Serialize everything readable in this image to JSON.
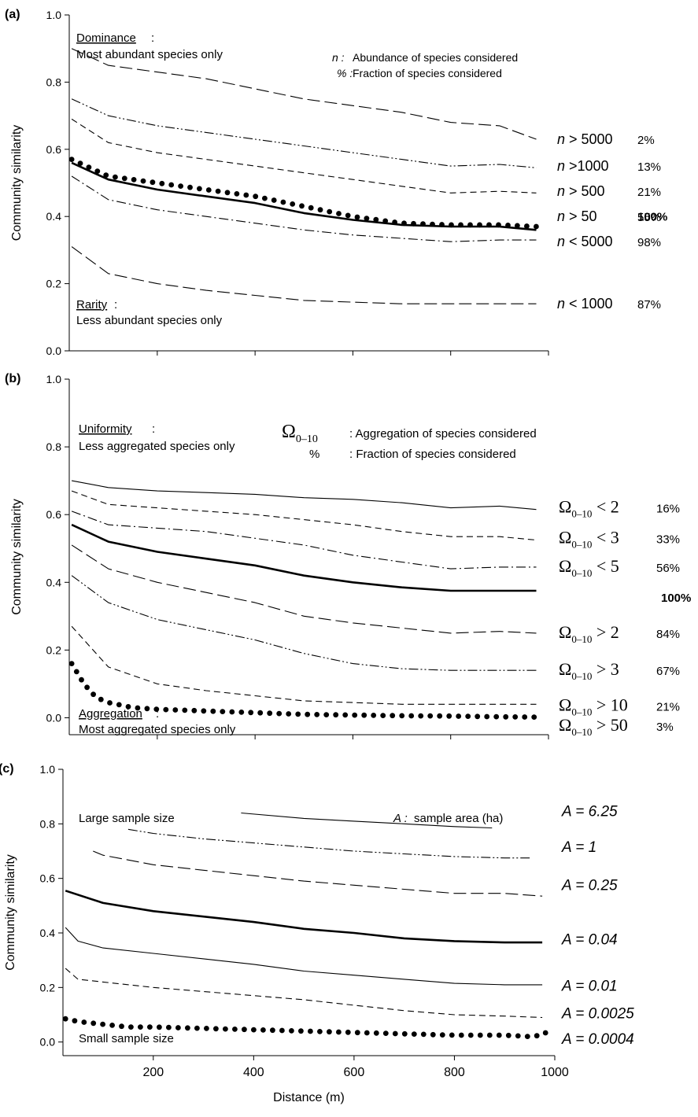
{
  "chart_data": [
    {
      "type": "line",
      "panel_label": "(a)",
      "ylabel": "Community similarity",
      "xlabel": "",
      "xlim": [
        20,
        1000
      ],
      "ylim": [
        0,
        1
      ],
      "yticks": [
        "0.0",
        "0.2",
        "0.4",
        "0.6",
        "0.8",
        "1.0"
      ],
      "xticks": [
        "",
        "",
        "",
        "",
        ""
      ],
      "annotations": {
        "top_left_heading": "Dominance",
        "top_left_sub": "Most abundant species only",
        "bottom_left_heading": "Rarity",
        "bottom_left_sub": "Less abundant species only",
        "legend_n_sym": "n :",
        "legend_n_text": "Abundance of species considered",
        "legend_pct_sym": "% :",
        "legend_pct_text": "Fraction of species considered"
      },
      "series": [
        {
          "name": "n > 5000",
          "sym": "n",
          "rel": "> 5000",
          "pct": "2%",
          "style": "longdash",
          "label_y": 0.63,
          "x": [
            25,
            100,
            200,
            300,
            400,
            500,
            600,
            700,
            800,
            900,
            975
          ],
          "y": [
            0.9,
            0.85,
            0.83,
            0.81,
            0.78,
            0.75,
            0.73,
            0.71,
            0.68,
            0.67,
            0.63
          ]
        },
        {
          "name": "n >1000",
          "sym": "n",
          "rel": ">1000",
          "pct": "13%",
          "style": "dashdotdot",
          "label_y": 0.55,
          "x": [
            25,
            100,
            200,
            300,
            400,
            500,
            600,
            700,
            800,
            900,
            975
          ],
          "y": [
            0.75,
            0.7,
            0.67,
            0.65,
            0.63,
            0.61,
            0.59,
            0.57,
            0.55,
            0.555,
            0.545
          ]
        },
        {
          "name": "n > 500",
          "sym": "n",
          "rel": "> 500",
          "pct": "21%",
          "style": "dash",
          "label_y": 0.475,
          "x": [
            25,
            100,
            200,
            300,
            400,
            500,
            600,
            700,
            800,
            900,
            975
          ],
          "y": [
            0.69,
            0.62,
            0.59,
            0.57,
            0.55,
            0.53,
            0.51,
            0.49,
            0.47,
            0.475,
            0.47
          ]
        },
        {
          "name": "n > 50",
          "sym": "n",
          "rel": "> 50",
          "pct": "55%",
          "style": "solid-thick",
          "label_y": 0.4,
          "x": [
            25,
            100,
            200,
            300,
            400,
            500,
            600,
            700,
            800,
            900,
            975
          ],
          "y": [
            0.56,
            0.51,
            0.48,
            0.46,
            0.44,
            0.41,
            0.39,
            0.375,
            0.37,
            0.37,
            0.36
          ]
        },
        {
          "name": "100%",
          "sym": "",
          "rel": "",
          "pct": "100%",
          "style": "dots",
          "label_y": 0.38,
          "x": [
            25,
            100,
            200,
            300,
            400,
            500,
            600,
            700,
            800,
            900,
            975
          ],
          "y": [
            0.57,
            0.52,
            0.5,
            0.48,
            0.46,
            0.43,
            0.4,
            0.38,
            0.375,
            0.375,
            0.37
          ]
        },
        {
          "name": "n < 5000",
          "sym": "n",
          "rel": "< 5000",
          "pct": "98%",
          "style": "dashdot",
          "label_y": 0.325,
          "x": [
            25,
            100,
            200,
            300,
            400,
            500,
            600,
            700,
            800,
            900,
            975
          ],
          "y": [
            0.52,
            0.45,
            0.42,
            0.4,
            0.38,
            0.36,
            0.345,
            0.335,
            0.325,
            0.33,
            0.33
          ]
        },
        {
          "name": "n < 1000",
          "sym": "n",
          "rel": "< 1000",
          "pct": "87%",
          "style": "longdash",
          "label_y": 0.14,
          "x": [
            25,
            100,
            200,
            300,
            400,
            500,
            600,
            700,
            800,
            900,
            975
          ],
          "y": [
            0.31,
            0.23,
            0.2,
            0.18,
            0.165,
            0.15,
            0.145,
            0.14,
            0.14,
            0.14,
            0.14
          ]
        }
      ]
    },
    {
      "type": "line",
      "panel_label": "(b)",
      "ylabel": "Community similarity",
      "xlabel": "",
      "xlim": [
        20,
        1000
      ],
      "ylim": [
        -0.05,
        1
      ],
      "yticks": [
        "0.0",
        "0.2",
        "0.4",
        "0.6",
        "0.8",
        "1.0"
      ],
      "xticks": [
        "",
        "",
        "",
        "",
        ""
      ],
      "annotations": {
        "top_left_heading": "Uniformity",
        "top_left_sub": "Less aggregated species only",
        "bottom_left_heading": "Aggregation",
        "bottom_left_sub": "Most aggregated species only",
        "legend_omega_sym": "Ω",
        "legend_omega_sub": "0–10",
        "legend_omega_text": ": Aggregation of species considered",
        "legend_pct_sym": "%",
        "legend_pct_text": ": Fraction of species considered"
      },
      "series": [
        {
          "name": "Ω0–10 < 2",
          "sym": "Ω",
          "sub": "0–10",
          "rel": "< 2",
          "pct": "16%",
          "style": "solid-thin",
          "label_y": 0.62,
          "x": [
            25,
            100,
            200,
            300,
            400,
            500,
            600,
            700,
            800,
            900,
            975
          ],
          "y": [
            0.7,
            0.68,
            0.67,
            0.665,
            0.66,
            0.65,
            0.645,
            0.635,
            0.62,
            0.625,
            0.615
          ]
        },
        {
          "name": "Ω0–10 < 3",
          "sym": "Ω",
          "sub": "0–10",
          "rel": "< 3",
          "pct": "33%",
          "style": "dash",
          "label_y": 0.53,
          "x": [
            25,
            100,
            200,
            300,
            400,
            500,
            600,
            700,
            800,
            900,
            975
          ],
          "y": [
            0.67,
            0.63,
            0.62,
            0.61,
            0.6,
            0.585,
            0.57,
            0.55,
            0.535,
            0.535,
            0.525
          ]
        },
        {
          "name": "Ω0–10 < 5",
          "sym": "Ω",
          "sub": "0–10",
          "rel": "< 5",
          "pct": "56%",
          "style": "dashdot",
          "label_y": 0.445,
          "x": [
            25,
            100,
            200,
            300,
            400,
            500,
            600,
            700,
            800,
            900,
            975
          ],
          "y": [
            0.61,
            0.57,
            0.56,
            0.55,
            0.53,
            0.51,
            0.48,
            0.46,
            0.44,
            0.445,
            0.445
          ]
        },
        {
          "name": "100%",
          "sym": "",
          "sub": "",
          "rel": "",
          "pct": "100%",
          "style": "solid-thick",
          "label_y": 0.375,
          "x": [
            25,
            100,
            200,
            300,
            400,
            500,
            600,
            700,
            800,
            900,
            975
          ],
          "y": [
            0.57,
            0.52,
            0.49,
            0.47,
            0.45,
            0.42,
            0.4,
            0.385,
            0.375,
            0.375,
            0.375
          ]
        },
        {
          "name": "Ω0–10 > 2",
          "sym": "Ω",
          "sub": "0–10",
          "rel": "> 2",
          "pct": "84%",
          "style": "longdash",
          "label_y": 0.25,
          "x": [
            25,
            100,
            200,
            300,
            400,
            500,
            600,
            700,
            800,
            900,
            975
          ],
          "y": [
            0.51,
            0.44,
            0.4,
            0.37,
            0.34,
            0.3,
            0.28,
            0.265,
            0.25,
            0.255,
            0.25
          ]
        },
        {
          "name": "Ω0–10 > 3",
          "sym": "Ω",
          "sub": "0–10",
          "rel": "> 3",
          "pct": "67%",
          "style": "dashdotdot",
          "label_y": 0.14,
          "x": [
            25,
            100,
            200,
            300,
            400,
            500,
            600,
            700,
            800,
            900,
            975
          ],
          "y": [
            0.42,
            0.34,
            0.29,
            0.26,
            0.23,
            0.19,
            0.16,
            0.145,
            0.14,
            0.14,
            0.14
          ]
        },
        {
          "name": "Ω0–10 > 10",
          "sym": "Ω",
          "sub": "0–10",
          "rel": "> 10",
          "pct": "21%",
          "style": "dash",
          "label_y": 0.035,
          "x": [
            25,
            100,
            200,
            300,
            400,
            500,
            600,
            700,
            800,
            900,
            975
          ],
          "y": [
            0.27,
            0.15,
            0.1,
            0.08,
            0.065,
            0.05,
            0.045,
            0.04,
            0.04,
            0.04,
            0.04
          ]
        },
        {
          "name": "Ω0–10 > 50",
          "sym": "Ω",
          "sub": "0–10",
          "rel": "> 50",
          "pct": "3%",
          "style": "dots",
          "label_y": -0.025,
          "x": [
            25,
            50,
            75,
            100,
            150,
            200,
            300,
            400,
            500,
            600,
            700,
            800,
            900,
            975
          ],
          "y": [
            0.16,
            0.1,
            0.06,
            0.045,
            0.03,
            0.025,
            0.02,
            0.015,
            0.01,
            0.008,
            0.006,
            0.005,
            0.003,
            0.002
          ]
        }
      ]
    },
    {
      "type": "line",
      "panel_label": "(c)",
      "ylabel": "Community similarity",
      "xlabel": "Distance (m)",
      "xlim": [
        20,
        1000
      ],
      "ylim": [
        -0.05,
        1
      ],
      "yticks": [
        "0.0",
        "0.2",
        "0.4",
        "0.6",
        "0.8",
        "1.0"
      ],
      "xticks": [
        "200",
        "400",
        "600",
        "800",
        "1000"
      ],
      "annotations": {
        "top_left_heading": "Large sample size",
        "bottom_left_heading": "Small sample size",
        "legend_a_sym": "A :",
        "legend_a_text": "sample area (ha)"
      },
      "series": [
        {
          "name": "A = 6.25",
          "label": "A = 6.25",
          "style": "solid-thin",
          "label_y": 0.845,
          "x": [
            375,
            500,
            600,
            700,
            800,
            875
          ],
          "y": [
            0.84,
            0.82,
            0.81,
            0.8,
            0.79,
            0.785
          ]
        },
        {
          "name": "A = 1",
          "label": "A = 1",
          "style": "dashdotdot",
          "label_y": 0.715,
          "x": [
            150,
            200,
            300,
            400,
            500,
            600,
            700,
            800,
            900,
            950
          ],
          "y": [
            0.78,
            0.765,
            0.745,
            0.73,
            0.715,
            0.7,
            0.69,
            0.68,
            0.675,
            0.675
          ]
        },
        {
          "name": "A = 0.25",
          "label": "A = 0.25",
          "style": "longdash",
          "label_y": 0.575,
          "x": [
            80,
            100,
            200,
            300,
            400,
            500,
            600,
            700,
            800,
            900,
            975
          ],
          "y": [
            0.7,
            0.685,
            0.65,
            0.63,
            0.61,
            0.59,
            0.575,
            0.56,
            0.545,
            0.545,
            0.535
          ]
        },
        {
          "name": "A = 0.04",
          "label": "A = 0.04",
          "style": "solid-thick",
          "label_y": 0.375,
          "x": [
            25,
            100,
            200,
            300,
            400,
            500,
            600,
            700,
            800,
            900,
            975
          ],
          "y": [
            0.555,
            0.51,
            0.48,
            0.46,
            0.44,
            0.415,
            0.4,
            0.38,
            0.37,
            0.365,
            0.365
          ]
        },
        {
          "name": "A = 0.01",
          "label": "A = 0.01",
          "style": "solid-thin",
          "label_y": 0.205,
          "x": [
            25,
            50,
            100,
            200,
            300,
            400,
            500,
            600,
            700,
            800,
            900,
            975
          ],
          "y": [
            0.42,
            0.37,
            0.345,
            0.325,
            0.305,
            0.285,
            0.26,
            0.245,
            0.23,
            0.215,
            0.21,
            0.21
          ]
        },
        {
          "name": "A = 0.0025",
          "label": "A = 0.0025",
          "style": "dash",
          "label_y": 0.105,
          "x": [
            25,
            50,
            100,
            200,
            300,
            400,
            500,
            600,
            700,
            800,
            900,
            975
          ],
          "y": [
            0.27,
            0.23,
            0.22,
            0.2,
            0.185,
            0.17,
            0.155,
            0.135,
            0.115,
            0.1,
            0.095,
            0.09
          ]
        },
        {
          "name": "A = 0.0004",
          "label": "A = 0.0004",
          "style": "dots",
          "label_y": 0.01,
          "x": [
            25,
            50,
            100,
            150,
            200,
            300,
            400,
            500,
            600,
            700,
            800,
            900,
            950,
            975,
            990
          ],
          "y": [
            0.085,
            0.075,
            0.065,
            0.055,
            0.055,
            0.05,
            0.045,
            0.04,
            0.035,
            0.03,
            0.025,
            0.025,
            0.02,
            0.025,
            0.045
          ]
        }
      ]
    }
  ]
}
